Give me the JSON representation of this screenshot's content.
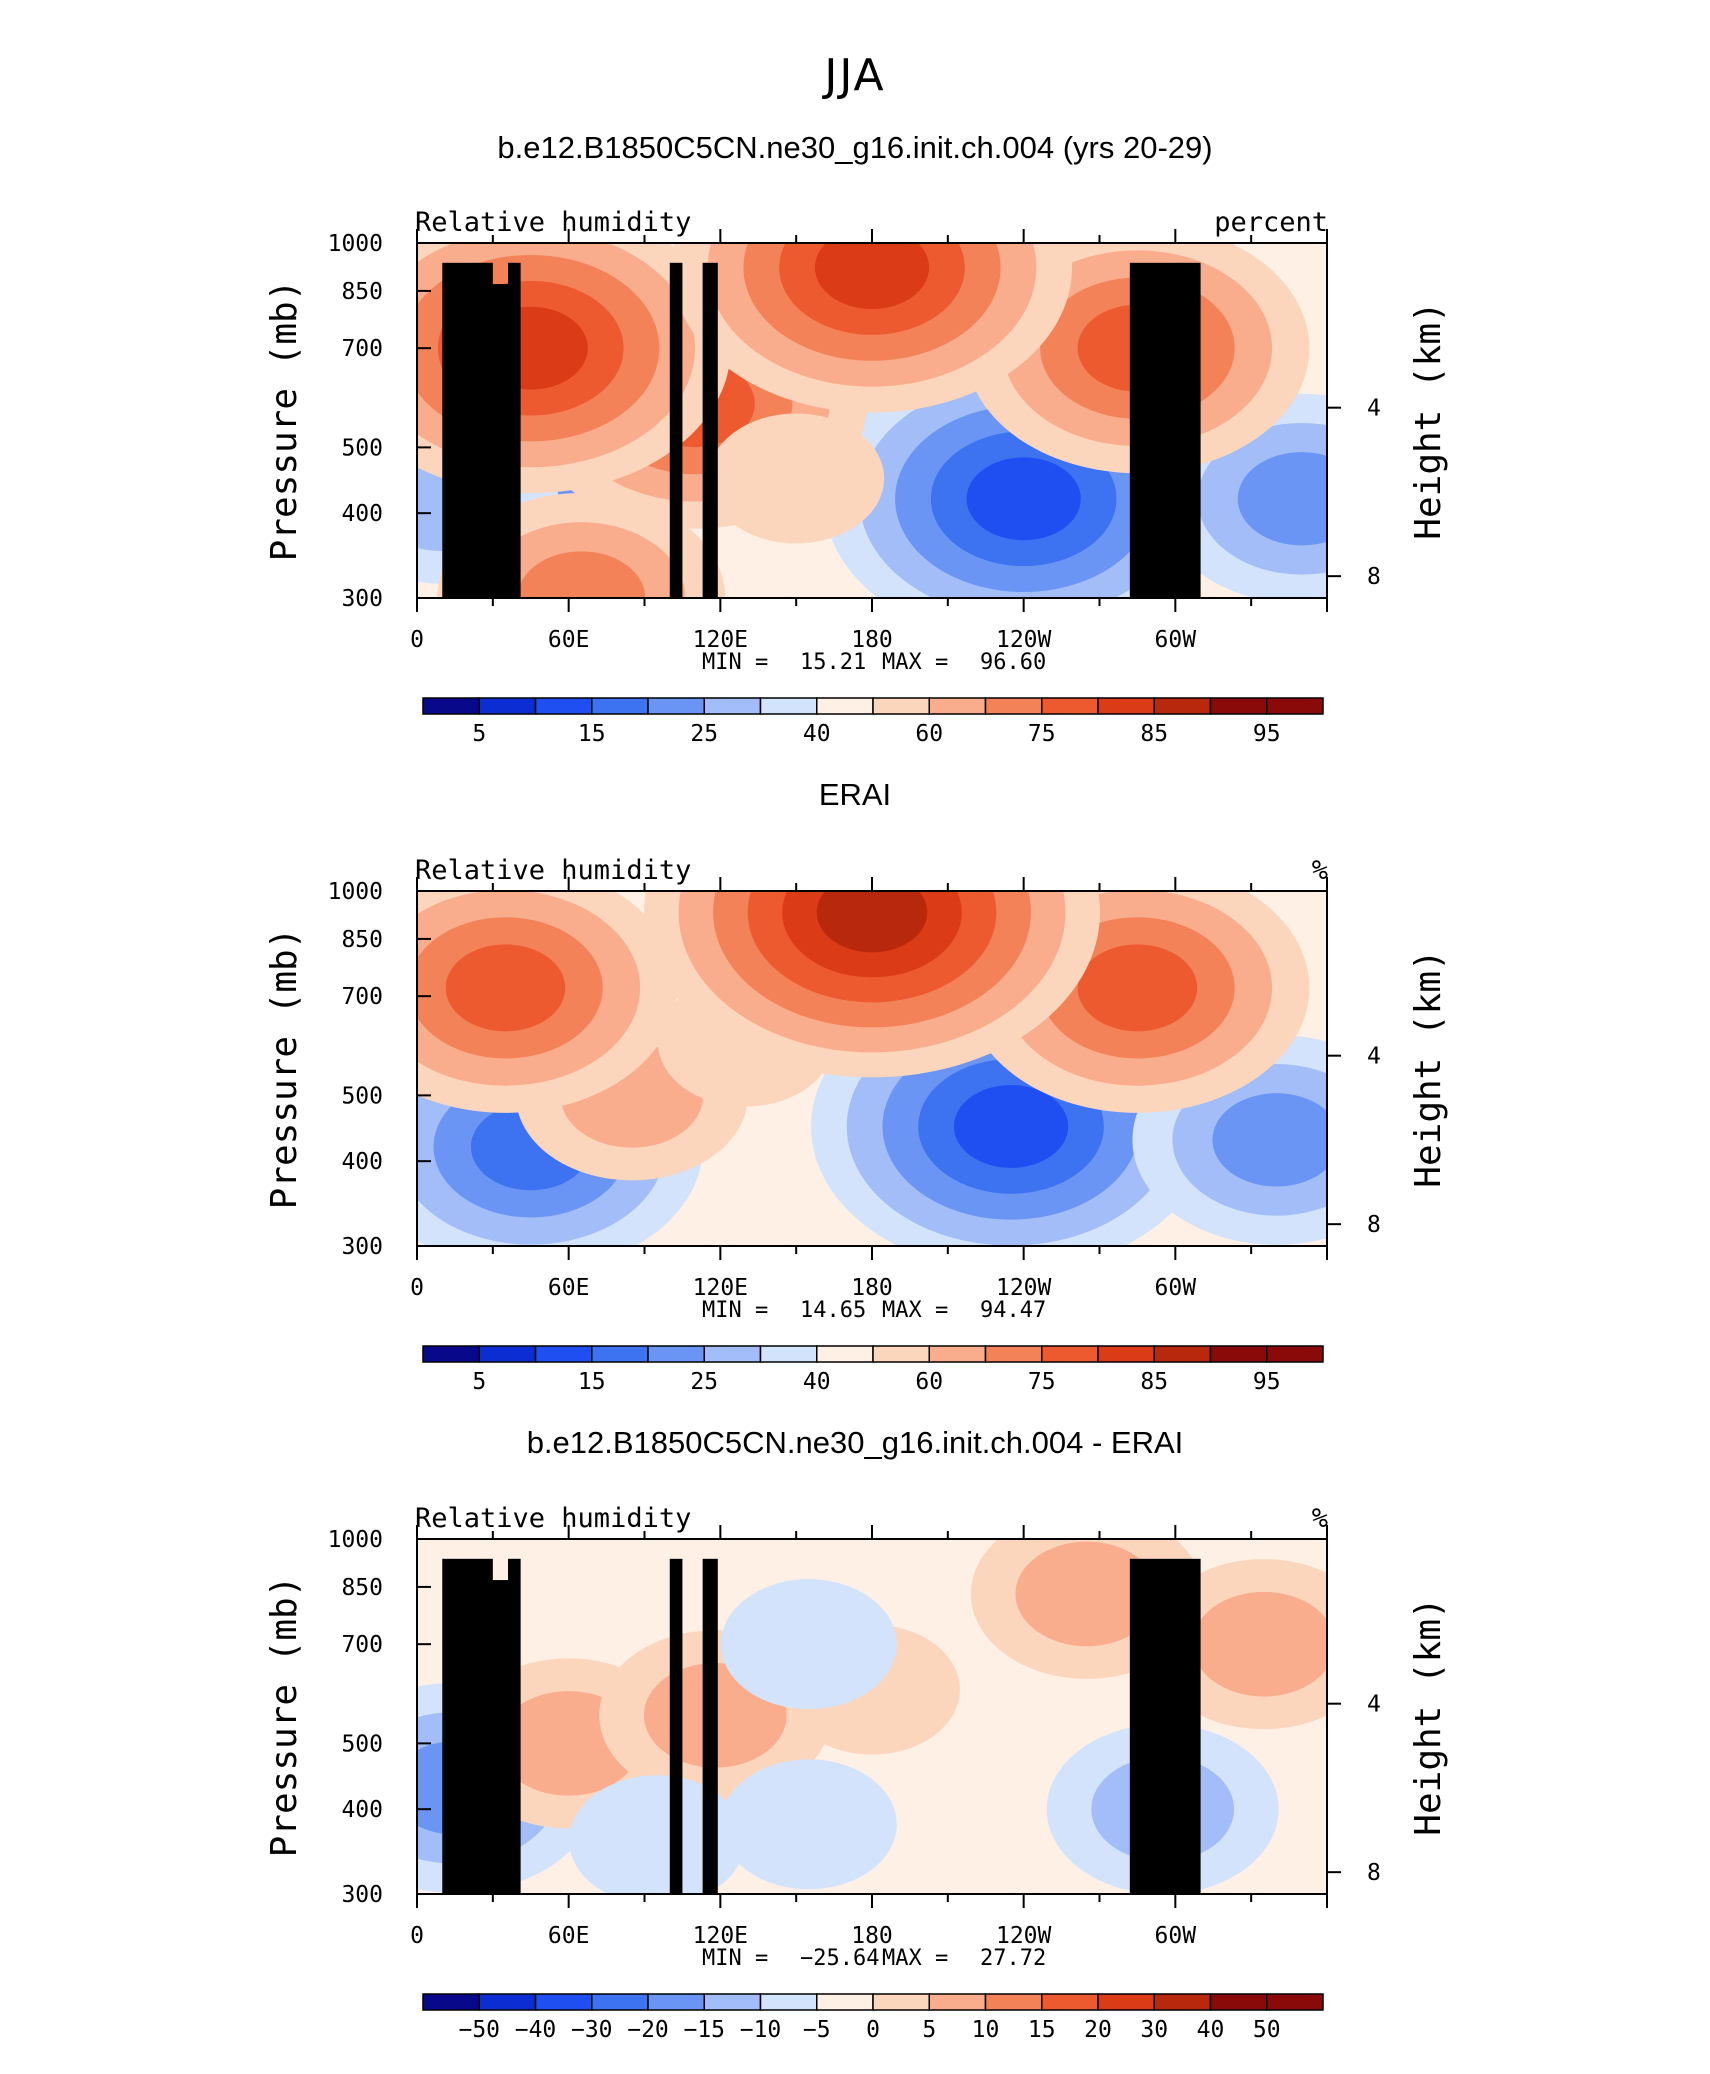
{
  "figure": {
    "title": "JJA"
  },
  "chart_data": [
    {
      "type": "heatmap",
      "title": "b.e12.B1850C5CN.ne30_g16.init.ch.004 (yrs 20-29)",
      "left_label": "Relative humidity",
      "right_label": "percent",
      "ylabel": "Pressure (mb)",
      "y2label": "Height (km)",
      "x_ticks": [
        "0",
        "60E",
        "120E",
        "180",
        "120W",
        "60W"
      ],
      "x_tick_values": [
        0,
        60,
        120,
        180,
        240,
        300
      ],
      "xlim": [
        0,
        360
      ],
      "y_ticks": [
        "300",
        "400",
        "500",
        "700",
        "850",
        "1000"
      ],
      "y_tick_values": [
        300,
        400,
        500,
        700,
        850,
        1000
      ],
      "ylim": [
        1000,
        300
      ],
      "y_scale": "log",
      "height_ticks": [
        "8",
        "4"
      ],
      "height_tick_values": [
        8,
        4
      ],
      "stats": {
        "min_label": "MIN =",
        "min": "15.21",
        "max_label": "MAX =",
        "max": "96.60"
      },
      "colorbar": {
        "labels": [
          "5",
          "15",
          "25",
          "40",
          "60",
          "75",
          "85",
          "95"
        ],
        "colors": [
          "#08088a",
          "#0b2dd1",
          "#1f4ff0",
          "#3d72f0",
          "#6b95f5",
          "#a2bdf7",
          "#d3e3fb",
          "#fff0e6",
          "#fcd5bd",
          "#f9ad8d",
          "#f48258",
          "#ee5a30",
          "#db3b16",
          "#b8280c",
          "#8a0a0a"
        ]
      },
      "features": [
        {
          "x": 240,
          "p": 420,
          "value": 15
        },
        {
          "x": 40,
          "p": 430,
          "value": 28
        },
        {
          "x": 10,
          "p": 420,
          "value": 32
        },
        {
          "x": 350,
          "p": 420,
          "value": 30
        },
        {
          "x": 110,
          "p": 580,
          "value": 80
        },
        {
          "x": 65,
          "p": 300,
          "value": 72
        },
        {
          "x": 150,
          "p": 450,
          "value": 55
        },
        {
          "x": 45,
          "p": 700,
          "value": 85
        },
        {
          "x": 285,
          "p": 700,
          "value": 82
        },
        {
          "x": 180,
          "p": 920,
          "value": 90
        }
      ],
      "topography": [
        {
          "lon": [
            10,
            30
          ],
          "p": 935
        },
        {
          "lon": [
            28,
            38
          ],
          "p": 870
        },
        {
          "lon": [
            36,
            41
          ],
          "p": 935
        },
        {
          "lon": [
            100,
            105
          ],
          "p": 935
        },
        {
          "lon": [
            113,
            119
          ],
          "p": 935
        },
        {
          "lon": [
            282,
            310
          ],
          "p": 935
        }
      ]
    },
    {
      "type": "heatmap",
      "title": "ERAI",
      "left_label": "Relative humidity",
      "right_label": "%",
      "ylabel": "Pressure (mb)",
      "y2label": "Height (km)",
      "x_ticks": [
        "0",
        "60E",
        "120E",
        "180",
        "120W",
        "60W"
      ],
      "x_tick_values": [
        0,
        60,
        120,
        180,
        240,
        300
      ],
      "xlim": [
        0,
        360
      ],
      "y_ticks": [
        "300",
        "400",
        "500",
        "700",
        "850",
        "1000"
      ],
      "y_tick_values": [
        300,
        400,
        500,
        700,
        850,
        1000
      ],
      "ylim": [
        1000,
        300
      ],
      "y_scale": "log",
      "height_ticks": [
        "8",
        "4"
      ],
      "height_tick_values": [
        8,
        4
      ],
      "stats": {
        "min_label": "MIN =",
        "min": "14.65",
        "max_label": "MAX =",
        "max": "94.47"
      },
      "colorbar": {
        "labels": [
          "5",
          "15",
          "25",
          "40",
          "60",
          "75",
          "85",
          "95"
        ],
        "colors": [
          "#08088a",
          "#0b2dd1",
          "#1f4ff0",
          "#3d72f0",
          "#6b95f5",
          "#a2bdf7",
          "#d3e3fb",
          "#fff0e6",
          "#fcd5bd",
          "#f9ad8d",
          "#f48258",
          "#ee5a30",
          "#db3b16",
          "#b8280c",
          "#8a0a0a"
        ]
      },
      "features": [
        {
          "x": 235,
          "p": 450,
          "value": 15
        },
        {
          "x": 45,
          "p": 420,
          "value": 20
        },
        {
          "x": 340,
          "p": 430,
          "value": 25
        },
        {
          "x": 85,
          "p": 500,
          "value": 62
        },
        {
          "x": 130,
          "p": 600,
          "value": 60
        },
        {
          "x": 35,
          "p": 720,
          "value": 82
        },
        {
          "x": 285,
          "p": 720,
          "value": 80
        },
        {
          "x": 180,
          "p": 930,
          "value": 92
        }
      ]
    },
    {
      "type": "heatmap",
      "title": "b.e12.B1850C5CN.ne30_g16.init.ch.004 - ERAI",
      "left_label": "Relative humidity",
      "right_label": "%",
      "ylabel": "Pressure (mb)",
      "y2label": "Height (km)",
      "x_ticks": [
        "0",
        "60E",
        "120E",
        "180",
        "120W",
        "60W"
      ],
      "x_tick_values": [
        0,
        60,
        120,
        180,
        240,
        300
      ],
      "xlim": [
        0,
        360
      ],
      "y_ticks": [
        "300",
        "400",
        "500",
        "700",
        "850",
        "1000"
      ],
      "y_tick_values": [
        300,
        400,
        500,
        700,
        850,
        1000
      ],
      "ylim": [
        1000,
        300
      ],
      "y_scale": "log",
      "height_ticks": [
        "8",
        "4"
      ],
      "height_tick_values": [
        8,
        4
      ],
      "stats": {
        "min_label": "MIN =",
        "min": "−25.64",
        "max_label": "MAX =",
        "max": "27.72"
      },
      "colorbar": {
        "labels": [
          "−50",
          "−40",
          "−30",
          "−20",
          "−15",
          "−10",
          "−5",
          "0",
          "5",
          "10",
          "15",
          "20",
          "30",
          "40",
          "50"
        ],
        "colors": [
          "#08088a",
          "#0b2dd1",
          "#1f4ff0",
          "#3d72f0",
          "#6b95f5",
          "#a2bdf7",
          "#d3e3fb",
          "#fff0e6",
          "#fcd5bd",
          "#f9ad8d",
          "#f48258",
          "#ee5a30",
          "#db3b16",
          "#b8280c",
          "#8a0a0a"
        ]
      },
      "features": [
        {
          "x": 15,
          "p": 430,
          "value": -22
        },
        {
          "x": 60,
          "p": 500,
          "value": 20
        },
        {
          "x": 118,
          "p": 550,
          "value": 18
        },
        {
          "x": 295,
          "p": 400,
          "value": -18
        },
        {
          "x": 95,
          "p": 360,
          "value": -12
        },
        {
          "x": 335,
          "p": 700,
          "value": 18
        },
        {
          "x": 265,
          "p": 830,
          "value": 15
        },
        {
          "x": 180,
          "p": 600,
          "value": 5
        },
        {
          "x": 155,
          "p": 380,
          "value": -8
        },
        {
          "x": 155,
          "p": 700,
          "value": -6
        }
      ],
      "topography": [
        {
          "lon": [
            10,
            30
          ],
          "p": 935
        },
        {
          "lon": [
            28,
            38
          ],
          "p": 870
        },
        {
          "lon": [
            36,
            41
          ],
          "p": 935
        },
        {
          "lon": [
            100,
            105
          ],
          "p": 935
        },
        {
          "lon": [
            113,
            119
          ],
          "p": 935
        },
        {
          "lon": [
            282,
            310
          ],
          "p": 935
        }
      ]
    }
  ]
}
